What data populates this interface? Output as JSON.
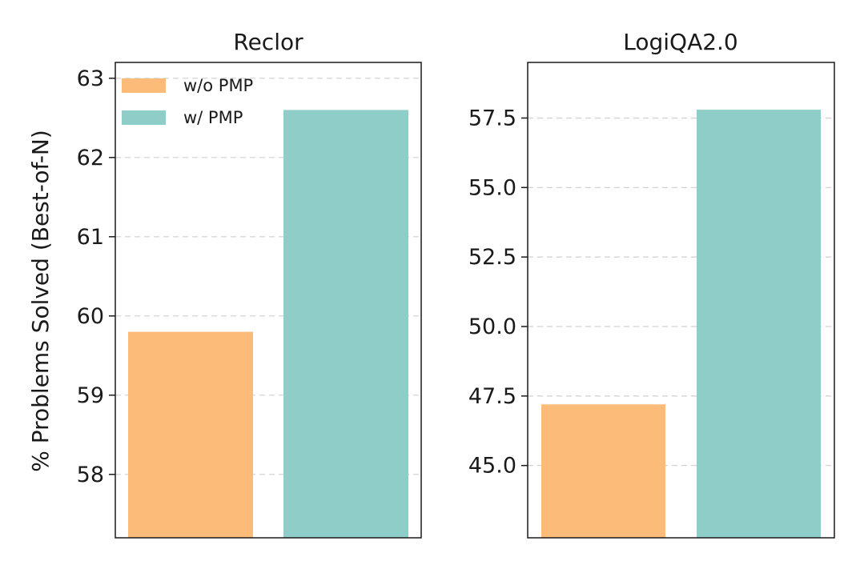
{
  "chart_data": [
    {
      "type": "bar",
      "title": "Reclor",
      "ylabel": "% Problems Solved (Best-of-N)",
      "xlabel": "",
      "categories": [
        "w/o PMP",
        "w/ PMP"
      ],
      "values": [
        59.8,
        62.6
      ],
      "colors": [
        "#fdbb7a",
        "#8fcec8"
      ],
      "ylim": [
        57.2,
        63.2
      ],
      "yticks": [
        58,
        59,
        60,
        61,
        62,
        63
      ],
      "ytick_labels": [
        "58",
        "59",
        "60",
        "61",
        "62",
        "63"
      ],
      "grid": "horizontal dashed",
      "legend": {
        "placement": "top-left",
        "entries": [
          {
            "label": "w/o PMP",
            "color": "#fdbb7a"
          },
          {
            "label": "w/ PMP",
            "color": "#8fcec8"
          }
        ]
      }
    },
    {
      "type": "bar",
      "title": "LogiQA2.0",
      "xlabel": "",
      "categories": [
        "w/o PMP",
        "w/ PMP"
      ],
      "values": [
        47.2,
        57.8
      ],
      "colors": [
        "#fdbb7a",
        "#8fcec8"
      ],
      "ylim": [
        42.4,
        59.5
      ],
      "yticks": [
        45.0,
        47.5,
        50.0,
        52.5,
        55.0,
        57.5
      ],
      "ytick_labels": [
        "45.0",
        "47.5",
        "50.0",
        "52.5",
        "55.0",
        "57.5"
      ],
      "grid": "horizontal dashed"
    }
  ]
}
